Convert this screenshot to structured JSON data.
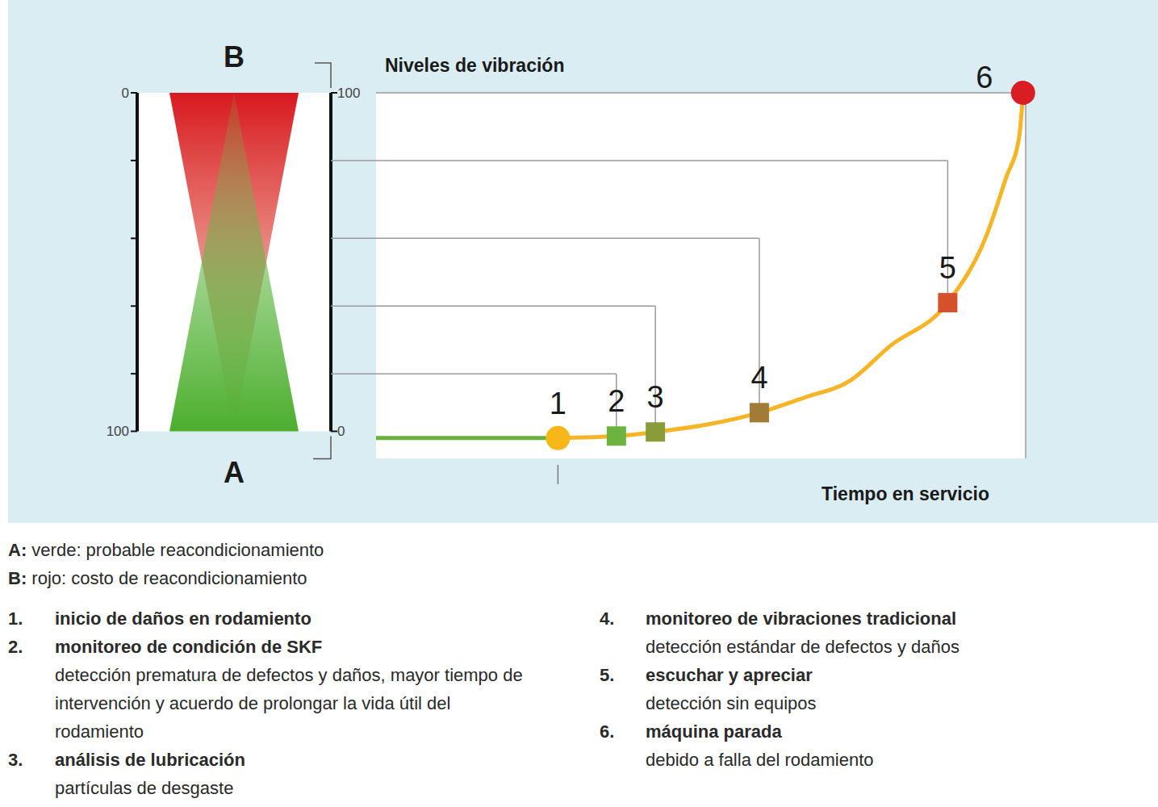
{
  "chart_data": {
    "type": "line",
    "y_label": "Niveles de vibración",
    "x_label": "Tiempo en servicio",
    "xlim": [
      0,
      100
    ],
    "ylim": [
      -8,
      100
    ],
    "yticks": [
      0,
      100
    ],
    "series": [
      {
        "color": "#6ab23e",
        "line_style": "solid",
        "x": [
          0,
          28
        ],
        "values": [
          -2,
          -2
        ]
      },
      {
        "color": "#f6b526",
        "line_style": "solid",
        "x": [
          28,
          37,
          43,
          51,
          59,
          66,
          73,
          79,
          88,
          94,
          97,
          99,
          99.6
        ],
        "values": [
          -2,
          -1.4,
          -0.2,
          2,
          5.5,
          10,
          15,
          25,
          38,
          58,
          75,
          87,
          100
        ]
      }
    ],
    "markers": [
      {
        "label": "1",
        "x": 28,
        "y": -2,
        "marker": "circle",
        "color": "#f7b718"
      },
      {
        "label": "2",
        "x": 37,
        "y": -1.4,
        "marker": "square",
        "color": "#6db33f",
        "level": 17
      },
      {
        "label": "3",
        "x": 43,
        "y": -0.2,
        "marker": "square",
        "color": "#8a9b3a",
        "level": 37
      },
      {
        "label": "4",
        "x": 59,
        "y": 5.5,
        "marker": "square",
        "color": "#a27c36",
        "level": 57
      },
      {
        "label": "5",
        "x": 88,
        "y": 38,
        "marker": "square",
        "color": "#d4512b",
        "level": 80
      },
      {
        "label": "6",
        "x": 99.6,
        "y": 100,
        "marker": "circle",
        "color": "#d81e24"
      }
    ],
    "gauge": {
      "top_label": "B",
      "bottom_label": "A",
      "range": [
        0,
        100
      ],
      "ticks": [
        0,
        100
      ]
    }
  },
  "key": {
    "gauge": [
      {
        "label": "A:",
        "text": "verde: probable reacondicionamiento"
      },
      {
        "label": "B:",
        "text": "rojo: costo de reacondicionamiento"
      }
    ],
    "items": [
      {
        "number": "1.",
        "title": "inicio de daños en rodamiento"
      },
      {
        "number": "2.",
        "title": "monitoreo de condición de SKF",
        "description": "detección prematura de defectos y daños, mayor tiempo de intervención y acuerdo de prolongar la vida útil del rodamiento"
      },
      {
        "number": "3.",
        "title": "análisis de lubricación",
        "description": "partículas de desgaste"
      },
      {
        "number": "4.",
        "title": "monitoreo de vibraciones tradicional",
        "description": "detección estándar de defectos y daños"
      },
      {
        "number": "5.",
        "title": "escuchar y apreciar",
        "description": "detección sin equipos"
      },
      {
        "number": "6.",
        "title": "máquina parada",
        "description": "debido a falla del rodamiento"
      }
    ]
  }
}
